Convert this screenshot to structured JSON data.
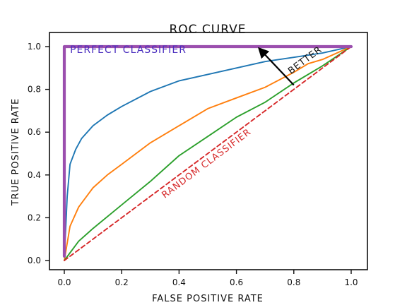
{
  "chart_data": {
    "type": "line",
    "title": "ROC CURVE",
    "xlabel": "FALSE POSITIVE RATE",
    "ylabel": "TRUE POSITIVE RATE",
    "xlim": [
      0.0,
      1.0
    ],
    "ylim": [
      0.0,
      1.0
    ],
    "xticks": [
      "0.0",
      "0.2",
      "0.4",
      "0.6",
      "0.8",
      "1.0"
    ],
    "yticks": [
      "0.0",
      "0.2",
      "0.4",
      "0.6",
      "0.8",
      "1.0"
    ],
    "grid": false,
    "legend": "none",
    "series": [
      {
        "color": "#1f77b4",
        "x": [
          0.0,
          0.005,
          0.01,
          0.02,
          0.04,
          0.06,
          0.1,
          0.15,
          0.2,
          0.3,
          0.4,
          0.5,
          0.6,
          0.7,
          0.8,
          0.9,
          1.0
        ],
        "y": [
          0.02,
          0.15,
          0.3,
          0.45,
          0.52,
          0.57,
          0.63,
          0.68,
          0.72,
          0.79,
          0.84,
          0.87,
          0.9,
          0.93,
          0.95,
          0.97,
          1.0
        ]
      },
      {
        "color": "#ff7f0e",
        "x": [
          0.0,
          0.02,
          0.05,
          0.1,
          0.15,
          0.2,
          0.3,
          0.4,
          0.5,
          0.6,
          0.7,
          0.8,
          0.85,
          0.9,
          1.0
        ],
        "y": [
          0.0,
          0.16,
          0.25,
          0.34,
          0.4,
          0.45,
          0.55,
          0.63,
          0.71,
          0.76,
          0.81,
          0.88,
          0.92,
          0.94,
          1.0
        ]
      },
      {
        "color": "#2ca02c",
        "x": [
          0.0,
          0.05,
          0.1,
          0.2,
          0.3,
          0.4,
          0.5,
          0.6,
          0.7,
          0.8,
          0.9,
          1.0
        ],
        "y": [
          0.0,
          0.09,
          0.15,
          0.26,
          0.37,
          0.49,
          0.58,
          0.67,
          0.74,
          0.83,
          0.91,
          1.0
        ]
      },
      {
        "name": "RANDOM CLASSIFIER",
        "color": "#d62728",
        "dashed": true,
        "x": [
          0.0,
          0.2,
          0.4,
          0.6,
          0.8,
          1.0
        ],
        "y": [
          0.0,
          0.2,
          0.4,
          0.6,
          0.8,
          1.0
        ]
      },
      {
        "name": "PERFECT CLASSIFIER",
        "color": "#9b4fae",
        "x": [
          0.0,
          0.0,
          1.0
        ],
        "y": [
          0.02,
          1.0,
          1.0
        ]
      }
    ],
    "annotations": [
      {
        "text": "PERFECT CLASSIFIER",
        "color": "#4b2fbf",
        "x": 0.02,
        "y": 0.97
      },
      {
        "text": "RANDOM CLASSIFIER",
        "color": "#d62728",
        "x": 0.35,
        "y": 0.29,
        "rotation": -37
      },
      {
        "text": "BETTER",
        "color": "#111111",
        "x": 0.79,
        "y": 0.87,
        "rotation": -37
      },
      {
        "text": "",
        "arrow_from": [
          0.8,
          0.82
        ],
        "arrow_to": [
          0.68,
          0.99
        ],
        "color": "#000000"
      }
    ]
  }
}
